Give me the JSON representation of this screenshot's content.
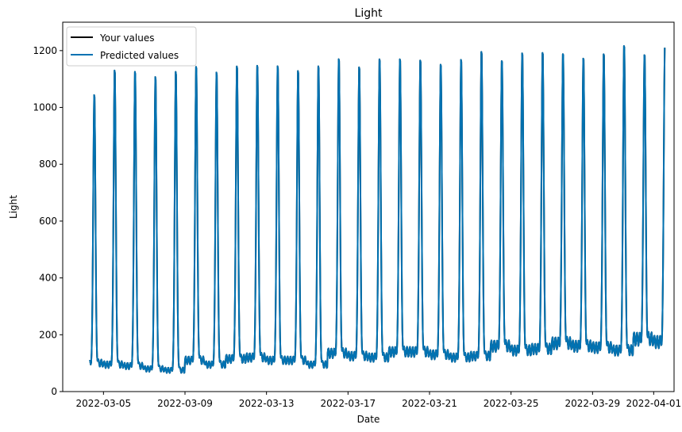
{
  "chart_data": {
    "type": "line",
    "title": "Light",
    "xlabel": "Date",
    "ylabel": "Light",
    "xlim": [
      "2022-03-03",
      "2022-04-02"
    ],
    "ylim": [
      0,
      1300
    ],
    "xticks": [
      "2022-03-05",
      "2022-03-09",
      "2022-03-13",
      "2022-03-17",
      "2022-03-21",
      "2022-03-25",
      "2022-03-29",
      "2022-04-01"
    ],
    "yticks": [
      "0",
      "200",
      "400",
      "600",
      "800",
      "1000",
      "1200"
    ],
    "grid": false,
    "legend_position": "top-left",
    "x_start": "2022-03-04",
    "x_end": "2022-04-01",
    "base_levels": [
      100,
      95,
      90,
      80,
      75,
      110,
      95,
      115,
      120,
      110,
      110,
      95,
      135,
      125,
      120,
      140,
      140,
      130,
      120,
      125,
      160,
      145,
      150,
      170,
      160,
      155,
      145,
      185,
      175
    ],
    "peak_values": [
      1068,
      1155,
      1150,
      1130,
      1148,
      1170,
      1148,
      1172,
      1175,
      1172,
      1155,
      1170,
      1200,
      1170,
      1198,
      1200,
      1196,
      1180,
      1196,
      1225,
      1196,
      1222,
      1224,
      1222,
      1205,
      1220,
      1248,
      1220,
      1245
    ],
    "series": [
      {
        "name": "Your values",
        "color": "#000000"
      },
      {
        "name": "Predicted values",
        "color": "#0072b2"
      }
    ]
  }
}
